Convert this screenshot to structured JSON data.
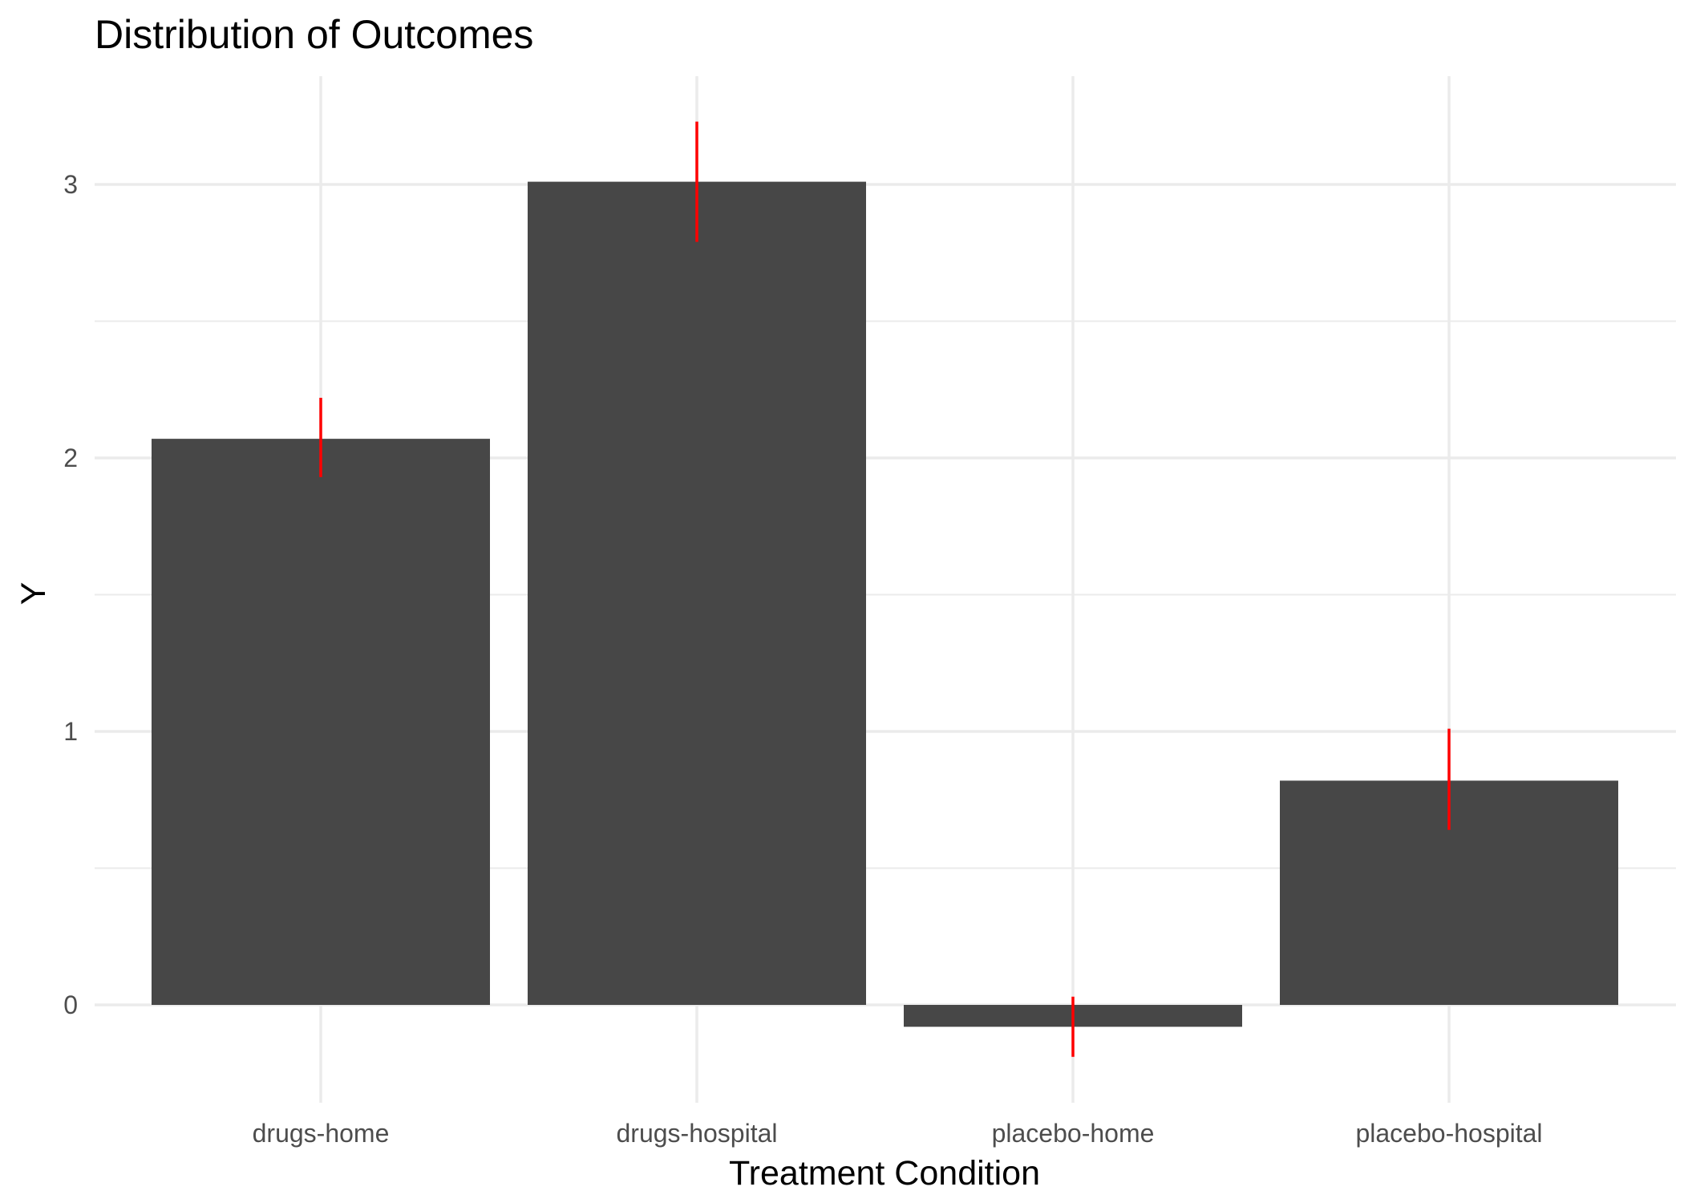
{
  "chart_data": {
    "type": "bar",
    "title": "Distribution of Outcomes",
    "xlabel": "Treatment Condition",
    "ylabel": "Y",
    "categories": [
      "drugs-home",
      "drugs-hospital",
      "placebo-home",
      "placebo-hospital"
    ],
    "values": [
      2.07,
      3.01,
      -0.08,
      0.82
    ],
    "error_bars": [
      {
        "low": 1.93,
        "high": 2.22
      },
      {
        "low": 2.79,
        "high": 3.23
      },
      {
        "low": -0.19,
        "high": 0.03
      },
      {
        "low": 0.64,
        "high": 1.01
      }
    ],
    "ylim": [
      -0.35,
      3.4
    ],
    "yticks": [
      0,
      1,
      2,
      3
    ],
    "ytick_labels": [
      "0",
      "1",
      "2",
      "3"
    ],
    "grid": true,
    "legend": "none",
    "colors": {
      "bar": "#474747",
      "error_bar": "#ff0000",
      "grid": "#ebebeb"
    }
  }
}
